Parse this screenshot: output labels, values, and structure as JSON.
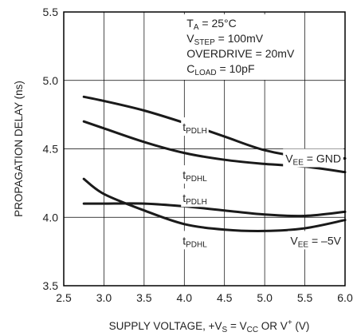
{
  "chart_data": {
    "type": "line",
    "xlabel": {
      "prefix": "SUPPLY VOLTAGE, +V",
      "sub1": "S",
      "mid": " = V",
      "sub2": "CC",
      "mid2": " OR V",
      "sup": "+",
      "suffix": " (V)"
    },
    "ylabel": "PROPAGATION DELAY (ns)",
    "xlim": [
      2.5,
      6.0
    ],
    "ylim": [
      3.5,
      5.5
    ],
    "x_ticks": [
      "2.5",
      "3.0",
      "3.5",
      "4.0",
      "4.5",
      "5.0",
      "5.5",
      "6.0"
    ],
    "y_ticks": [
      "3.5",
      "4.0",
      "4.5",
      "5.0",
      "5.5"
    ],
    "grid": true,
    "conditions": [
      {
        "main": "T",
        "sub": "A",
        "rest": " = 25°C"
      },
      {
        "main": "V",
        "sub": "STEP",
        "rest": " = 100mV"
      },
      {
        "main": "OVERDRIVE = 20mV",
        "sub": "",
        "rest": ""
      },
      {
        "main": "C",
        "sub": "LOAD",
        "rest": " = 10pF"
      }
    ],
    "groups": [
      {
        "main": "V",
        "sub": "EE",
        "rest": " = GND"
      },
      {
        "main": "V",
        "sub": "EE",
        "rest": " = –5V"
      }
    ],
    "series": [
      {
        "name_main": "t",
        "name_sub": "PDLH",
        "group": 0,
        "x": [
          2.75,
          3.0,
          3.5,
          4.0,
          4.5,
          5.0,
          5.5,
          6.0
        ],
        "y": [
          4.88,
          4.85,
          4.78,
          4.69,
          4.59,
          4.49,
          4.44,
          4.43
        ]
      },
      {
        "name_main": "t",
        "name_sub": "PDHL",
        "group": 0,
        "x": [
          2.75,
          3.0,
          3.5,
          4.0,
          4.5,
          5.0,
          5.5,
          6.0
        ],
        "y": [
          4.7,
          4.65,
          4.55,
          4.47,
          4.42,
          4.39,
          4.37,
          4.33
        ]
      },
      {
        "name_main": "t",
        "name_sub": "PDLH",
        "group": 1,
        "x": [
          2.75,
          3.0,
          3.5,
          4.0,
          4.5,
          5.0,
          5.5,
          6.0
        ],
        "y": [
          4.1,
          4.1,
          4.1,
          4.08,
          4.05,
          4.02,
          4.01,
          4.04
        ]
      },
      {
        "name_main": "t",
        "name_sub": "PDHL",
        "group": 1,
        "x": [
          2.75,
          3.0,
          3.5,
          4.0,
          4.5,
          5.0,
          5.5,
          6.0
        ],
        "y": [
          4.28,
          4.17,
          4.05,
          3.95,
          3.91,
          3.9,
          3.92,
          3.98
        ]
      }
    ]
  }
}
